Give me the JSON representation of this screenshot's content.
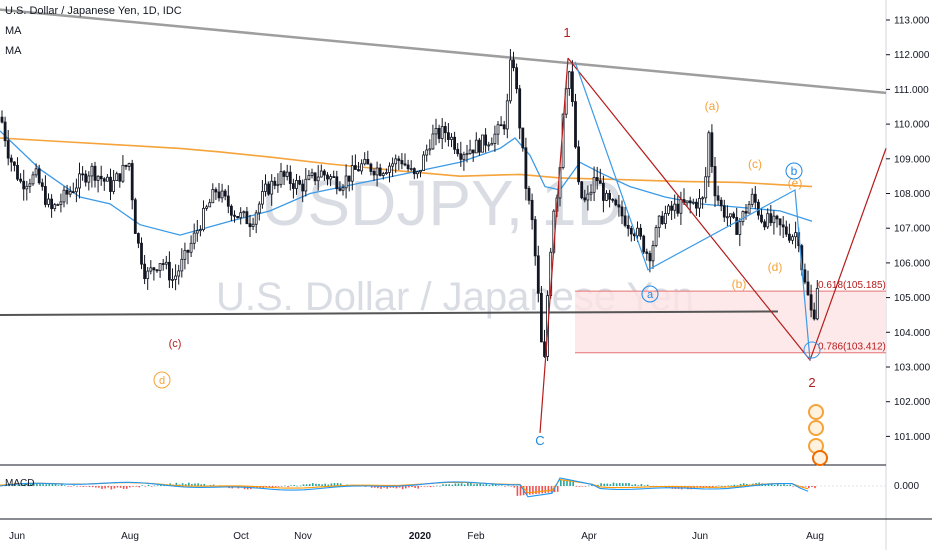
{
  "header": {
    "symbol": "U.S. Dollar / Japanese Yen, 1D, IDC",
    "indicator1": "MA",
    "indicator2": "MA"
  },
  "watermark": {
    "ticker": "USDJPY, 1D",
    "name": "U.S. Dollar / Japanese Yen"
  },
  "macd_label": "MACD",
  "macd_value": "0.000",
  "chart_data": {
    "type": "candlestick",
    "title": "U.S. Dollar / Japanese Yen, 1D, IDC",
    "y_ticks": [
      "113.000",
      "112.000",
      "111.000",
      "110.000",
      "109.000",
      "108.000",
      "107.000",
      "106.000",
      "105.000",
      "104.000",
      "103.000",
      "102.000",
      "101.000"
    ],
    "ylim": [
      100.5,
      113.3
    ],
    "x_ticks": [
      "Jun",
      "Aug",
      "Oct",
      "Nov",
      "2020",
      "Feb",
      "Apr",
      "Jun",
      "Aug"
    ],
    "price_path": [
      [
        0,
        110.2
      ],
      [
        8,
        109.1
      ],
      [
        20,
        108.3
      ],
      [
        35,
        108.5
      ],
      [
        50,
        107.5
      ],
      [
        70,
        108.1
      ],
      [
        90,
        108.7
      ],
      [
        110,
        108.2
      ],
      [
        128,
        108.9
      ],
      [
        135,
        106.8
      ],
      [
        145,
        105.6
      ],
      [
        160,
        106.1
      ],
      [
        172,
        105.5
      ],
      [
        185,
        106.2
      ],
      [
        200,
        107.2
      ],
      [
        215,
        108.1
      ],
      [
        235,
        107.4
      ],
      [
        250,
        107.2
      ],
      [
        265,
        108.1
      ],
      [
        280,
        108.5
      ],
      [
        300,
        108.2
      ],
      [
        320,
        108.6
      ],
      [
        340,
        108.3
      ],
      [
        360,
        108.8
      ],
      [
        380,
        108.7
      ],
      [
        400,
        109.0
      ],
      [
        415,
        108.4
      ],
      [
        430,
        109.6
      ],
      [
        445,
        109.8
      ],
      [
        460,
        109.2
      ],
      [
        478,
        109.4
      ],
      [
        495,
        109.7
      ],
      [
        505,
        110.1
      ],
      [
        511,
        112.2
      ],
      [
        518,
        110.2
      ],
      [
        525,
        108.2
      ],
      [
        532,
        107.0
      ],
      [
        540,
        104.0
      ],
      [
        542,
        102.2
      ],
      [
        546,
        104.8
      ],
      [
        552,
        107.5
      ],
      [
        558,
        108.3
      ],
      [
        563,
        110.9
      ],
      [
        568,
        111.6
      ],
      [
        572,
        110.3
      ],
      [
        578,
        108.0
      ],
      [
        585,
        107.7
      ],
      [
        595,
        108.5
      ],
      [
        605,
        107.8
      ],
      [
        620,
        107.4
      ],
      [
        635,
        106.9
      ],
      [
        648,
        106.2
      ],
      [
        660,
        107.3
      ],
      [
        675,
        107.6
      ],
      [
        690,
        107.7
      ],
      [
        703,
        107.8
      ],
      [
        708,
        109.8
      ],
      [
        713,
        108.2
      ],
      [
        720,
        107.6
      ],
      [
        735,
        107.0
      ],
      [
        752,
        107.9
      ],
      [
        760,
        107.3
      ],
      [
        775,
        107.1
      ],
      [
        790,
        106.8
      ],
      [
        797,
        106.9
      ],
      [
        802,
        105.6
      ],
      [
        808,
        104.9
      ],
      [
        812,
        104.3
      ],
      [
        818,
        105.8
      ]
    ],
    "series": [
      {
        "name": "MA (blue)",
        "color": "#3c9ae6"
      },
      {
        "name": "MA (orange)",
        "color": "#f5a33b"
      }
    ],
    "blue_ma": [
      [
        0,
        109.8
      ],
      [
        40,
        108.7
      ],
      [
        80,
        107.9
      ],
      [
        110,
        107.7
      ],
      [
        140,
        107.1
      ],
      [
        180,
        106.8
      ],
      [
        230,
        107.2
      ],
      [
        270,
        107.5
      ],
      [
        310,
        108.0
      ],
      [
        360,
        108.3
      ],
      [
        410,
        108.6
      ],
      [
        460,
        108.9
      ],
      [
        500,
        109.3
      ],
      [
        515,
        109.6
      ],
      [
        530,
        109.1
      ],
      [
        545,
        108.2
      ],
      [
        560,
        108.1
      ],
      [
        580,
        108.9
      ],
      [
        600,
        108.6
      ],
      [
        630,
        108.2
      ],
      [
        665,
        107.9
      ],
      [
        700,
        107.7
      ],
      [
        740,
        107.6
      ],
      [
        780,
        107.5
      ],
      [
        812,
        107.2
      ]
    ],
    "orange_ma": [
      [
        0,
        109.6
      ],
      [
        60,
        109.5
      ],
      [
        120,
        109.4
      ],
      [
        180,
        109.3
      ],
      [
        220,
        109.2
      ],
      [
        270,
        109.05
      ],
      [
        330,
        108.85
      ],
      [
        400,
        108.65
      ],
      [
        460,
        108.5
      ],
      [
        520,
        108.55
      ],
      [
        560,
        108.45
      ],
      [
        620,
        108.4
      ],
      [
        680,
        108.35
      ],
      [
        740,
        108.32
      ],
      [
        812,
        108.2
      ]
    ],
    "annotations": {
      "labels": [
        {
          "text": "1",
          "color": "#b71c1c"
        },
        {
          "text": "2",
          "color": "#b71c1c"
        },
        {
          "text": "C",
          "color": "#1e88e5"
        },
        {
          "text": "(c)",
          "color": "#b71c1c"
        },
        {
          "text": "d",
          "color": "#f5a33b"
        },
        {
          "text": "(a)",
          "color": "#f5a33b"
        },
        {
          "text": "(b)",
          "color": "#f5a33b"
        },
        {
          "text": "(c)",
          "color": "#f5a33b"
        },
        {
          "text": "(d)",
          "color": "#f5a33b"
        },
        {
          "text": "(e)",
          "color": "#f5a33b"
        },
        {
          "text": "a",
          "color": "#1e88e5"
        },
        {
          "text": "b",
          "color": "#1e88e5"
        }
      ],
      "fib_levels": [
        {
          "label": "0.618(105.185)",
          "value": 105.185
        },
        {
          "label": "0.786(103.412)",
          "value": 103.412
        }
      ]
    }
  },
  "colors": {
    "up": "#131722",
    "down": "#131722",
    "trendline": "#9e9e9e",
    "support": "#555555",
    "wave": "#b71c1c",
    "fib": "#e57373",
    "fib_fill": "#fde3e3",
    "macd_line": "#2196f3",
    "signal_line": "#ff9800",
    "hist_up": "#26a69a",
    "hist_down": "#ef5350"
  }
}
